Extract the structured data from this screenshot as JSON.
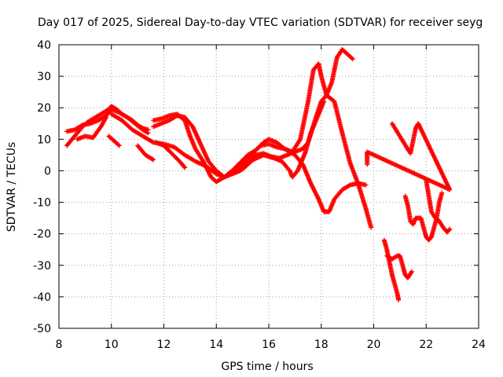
{
  "chart_data": {
    "type": "scatter",
    "title": "Day 017 of 2025, Sidereal Day-to-day VTEC variation (SDTVAR) for receiver seyg",
    "xlabel": "GPS time / hours",
    "ylabel": "SDTVAR / TECUs",
    "xlim": [
      8,
      24
    ],
    "ylim": [
      -50,
      40
    ],
    "x_ticks": [
      8,
      10,
      12,
      14,
      16,
      18,
      20,
      22,
      24
    ],
    "y_ticks": [
      -50,
      -40,
      -30,
      -20,
      -10,
      0,
      10,
      20,
      30,
      40
    ],
    "x_tick_labels": [
      "8",
      "10",
      "12",
      "14",
      "16",
      "18",
      "20",
      "22",
      "24"
    ],
    "y_tick_labels": [
      "-50",
      "-40",
      "-30",
      "-20",
      "-10",
      "0",
      "10",
      "20",
      "30",
      "40"
    ],
    "grid": true,
    "marker": "+",
    "marker_color": "#ff0000",
    "legend": "none",
    "series": [
      {
        "name": "s1",
        "points": [
          [
            8.3,
            8
          ],
          [
            8.5,
            10
          ],
          [
            8.7,
            12
          ],
          [
            8.9,
            14
          ],
          [
            9.1,
            15.5
          ],
          [
            9.3,
            16.5
          ],
          [
            9.5,
            17.5
          ],
          [
            9.7,
            18.5
          ],
          [
            9.9,
            19.5
          ],
          [
            10.0,
            20.5
          ],
          [
            10.2,
            19.5
          ],
          [
            10.4,
            18
          ],
          [
            10.6,
            17
          ],
          [
            10.8,
            16
          ],
          [
            11.0,
            14.5
          ],
          [
            11.2,
            13.5
          ],
          [
            11.4,
            13
          ]
        ]
      },
      {
        "name": "s2",
        "points": [
          [
            8.3,
            12.5
          ],
          [
            8.6,
            13
          ],
          [
            8.9,
            14.5
          ],
          [
            9.2,
            15
          ],
          [
            9.5,
            16
          ],
          [
            9.8,
            17.5
          ],
          [
            10.0,
            19.5
          ],
          [
            10.3,
            18.5
          ],
          [
            10.6,
            17
          ],
          [
            10.9,
            15
          ],
          [
            11.2,
            13
          ],
          [
            11.4,
            12
          ]
        ]
      },
      {
        "name": "s3",
        "points": [
          [
            8.7,
            10
          ],
          [
            9.0,
            11
          ],
          [
            9.3,
            10.5
          ],
          [
            9.6,
            14
          ],
          [
            9.8,
            17
          ]
        ]
      },
      {
        "name": "s4",
        "points": [
          [
            9.9,
            11
          ],
          [
            10.1,
            9.5
          ],
          [
            10.3,
            8
          ]
        ]
      },
      {
        "name": "s5",
        "points": [
          [
            11.6,
            14
          ],
          [
            11.9,
            15
          ],
          [
            12.2,
            16
          ],
          [
            12.5,
            17.5
          ],
          [
            12.8,
            17
          ],
          [
            13.1,
            14
          ],
          [
            13.4,
            8.5
          ],
          [
            13.7,
            3
          ],
          [
            14.0,
            0
          ],
          [
            14.3,
            -2
          ],
          [
            14.6,
            -1
          ],
          [
            14.9,
            0
          ],
          [
            15.2,
            2.5
          ],
          [
            15.5,
            5
          ],
          [
            15.8,
            5.5
          ],
          [
            16.1,
            4.5
          ],
          [
            16.4,
            4
          ],
          [
            16.7,
            5
          ],
          [
            17.0,
            6
          ],
          [
            17.3,
            7
          ],
          [
            17.5,
            9
          ],
          [
            17.8,
            17
          ],
          [
            18.0,
            22
          ],
          [
            18.2,
            24
          ],
          [
            18.5,
            22
          ],
          [
            18.8,
            12
          ],
          [
            19.1,
            2.5
          ],
          [
            19.4,
            -4
          ],
          [
            19.7,
            -12
          ],
          [
            19.9,
            -18
          ]
        ]
      },
      {
        "name": "s6",
        "points": [
          [
            11.6,
            16
          ],
          [
            11.9,
            16.5
          ],
          [
            12.2,
            17.5
          ],
          [
            12.5,
            18
          ],
          [
            12.8,
            16
          ],
          [
            13.0,
            11
          ],
          [
            13.2,
            7
          ],
          [
            13.5,
            3
          ],
          [
            13.8,
            -2
          ],
          [
            14.0,
            -3.5
          ],
          [
            14.3,
            -2
          ],
          [
            14.6,
            0
          ],
          [
            14.9,
            2.5
          ],
          [
            15.2,
            5
          ],
          [
            15.5,
            6.5
          ],
          [
            15.7,
            8
          ],
          [
            16.0,
            8.5
          ],
          [
            16.3,
            7.5
          ],
          [
            16.6,
            7
          ],
          [
            16.9,
            6
          ],
          [
            17.2,
            10
          ],
          [
            17.5,
            22
          ],
          [
            17.7,
            32
          ],
          [
            17.9,
            34
          ],
          [
            18.0,
            30
          ],
          [
            18.2,
            24
          ],
          [
            18.4,
            28
          ],
          [
            18.6,
            36
          ],
          [
            18.8,
            38.5
          ],
          [
            19.0,
            37
          ],
          [
            19.2,
            35.5
          ]
        ]
      },
      {
        "name": "s7",
        "points": [
          [
            10.0,
            18
          ],
          [
            10.4,
            16
          ],
          [
            10.8,
            13
          ],
          [
            11.2,
            11
          ],
          [
            11.6,
            9
          ],
          [
            12.0,
            8.5
          ],
          [
            12.4,
            7.5
          ],
          [
            12.8,
            5
          ],
          [
            13.2,
            3
          ],
          [
            13.6,
            1.5
          ],
          [
            14.0,
            -1
          ],
          [
            14.3,
            -2
          ],
          [
            14.6,
            -1
          ],
          [
            14.9,
            1
          ],
          [
            15.2,
            4
          ],
          [
            15.5,
            6.5
          ],
          [
            15.8,
            9
          ],
          [
            16.0,
            10
          ],
          [
            16.3,
            9
          ],
          [
            16.6,
            7
          ],
          [
            17.0,
            5
          ],
          [
            17.3,
            2
          ],
          [
            17.6,
            -4
          ],
          [
            17.9,
            -9
          ],
          [
            18.1,
            -13
          ],
          [
            18.3,
            -13
          ],
          [
            18.5,
            -9
          ],
          [
            18.8,
            -6
          ],
          [
            19.1,
            -4.5
          ],
          [
            19.4,
            -4
          ],
          [
            19.7,
            -4.5
          ]
        ]
      },
      {
        "name": "s8",
        "points": [
          [
            11.0,
            8
          ],
          [
            11.3,
            5
          ],
          [
            11.6,
            3.5
          ]
        ]
      },
      {
        "name": "s9",
        "points": [
          [
            11.7,
            9
          ],
          [
            12.0,
            8
          ],
          [
            12.3,
            5.5
          ],
          [
            12.6,
            3
          ],
          [
            12.8,
            1
          ]
        ]
      },
      {
        "name": "s10",
        "points": [
          [
            14.6,
            -1
          ],
          [
            15.0,
            0.5
          ],
          [
            15.4,
            3.5
          ],
          [
            15.8,
            5
          ],
          [
            16.2,
            4
          ],
          [
            16.5,
            3
          ],
          [
            16.8,
            0
          ],
          [
            16.9,
            -2
          ],
          [
            17.1,
            0
          ],
          [
            17.4,
            6
          ],
          [
            17.6,
            12
          ],
          [
            17.9,
            18
          ],
          [
            18.1,
            22
          ]
        ]
      },
      {
        "name": "s11",
        "points": [
          [
            20.4,
            -22
          ],
          [
            20.5,
            -25
          ],
          [
            20.6,
            -29
          ],
          [
            20.7,
            -33
          ],
          [
            20.8,
            -36
          ],
          [
            20.9,
            -39
          ],
          [
            20.95,
            -41
          ]
        ]
      },
      {
        "name": "s12",
        "points": [
          [
            20.5,
            -27
          ],
          [
            20.7,
            -28
          ],
          [
            20.9,
            -27
          ],
          [
            21.0,
            -27
          ],
          [
            21.1,
            -30
          ],
          [
            21.2,
            -33
          ],
          [
            21.3,
            -34
          ],
          [
            21.45,
            -32
          ]
        ]
      },
      {
        "name": "s13",
        "points": [
          [
            21.2,
            -8
          ],
          [
            21.3,
            -11
          ],
          [
            21.4,
            -16
          ],
          [
            21.5,
            -17
          ],
          [
            21.6,
            -15
          ],
          [
            21.8,
            -15
          ],
          [
            21.9,
            -18
          ],
          [
            22.0,
            -21
          ],
          [
            22.1,
            -22
          ],
          [
            22.2,
            -21
          ],
          [
            22.3,
            -18
          ],
          [
            22.4,
            -15
          ],
          [
            22.5,
            -10
          ],
          [
            22.6,
            -7
          ]
        ]
      },
      {
        "name": "s14",
        "points": [
          [
            22.0,
            -3
          ],
          [
            22.1,
            -8
          ],
          [
            22.2,
            -13
          ],
          [
            22.35,
            -15
          ],
          [
            22.5,
            -16
          ],
          [
            22.65,
            -18
          ],
          [
            22.8,
            -19.5
          ],
          [
            22.9,
            -18.5
          ]
        ]
      },
      {
        "name": "s15",
        "points": [
          [
            20.7,
            15
          ],
          [
            21.4,
            5.5
          ],
          [
            21.6,
            13.5
          ],
          [
            21.7,
            15
          ],
          [
            22.9,
            -6
          ],
          [
            19.75,
            6
          ],
          [
            19.75,
            2
          ]
        ]
      }
    ]
  }
}
